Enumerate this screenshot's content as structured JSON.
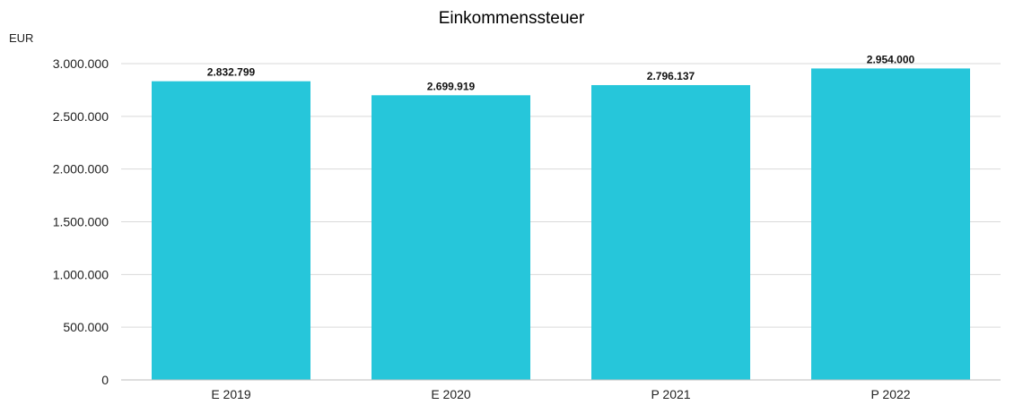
{
  "chart_data": {
    "type": "bar",
    "title": "Einkommenssteuer",
    "unit_label": "EUR",
    "categories": [
      "E 2019",
      "E 2020",
      "P 2021",
      "P 2022"
    ],
    "values": [
      2832799,
      2699919,
      2796137,
      2954000
    ],
    "value_labels": [
      "2.832.799",
      "2.699.919",
      "2.796.137",
      "2.954.000"
    ],
    "yticks": [
      0,
      500000,
      1000000,
      1500000,
      2000000,
      2500000,
      3000000
    ],
    "ytick_labels": [
      "0",
      "500.000",
      "1.000.000",
      "1.500.000",
      "2.000.000",
      "2.500.000",
      "3.000.000"
    ],
    "ylim": [
      0,
      3000000
    ],
    "grid": true,
    "legend": "none",
    "colors": {
      "bar": "#26C6DA",
      "grid": "#d9d9d9",
      "axis": "#bdbdbd",
      "text": "#222222"
    }
  }
}
